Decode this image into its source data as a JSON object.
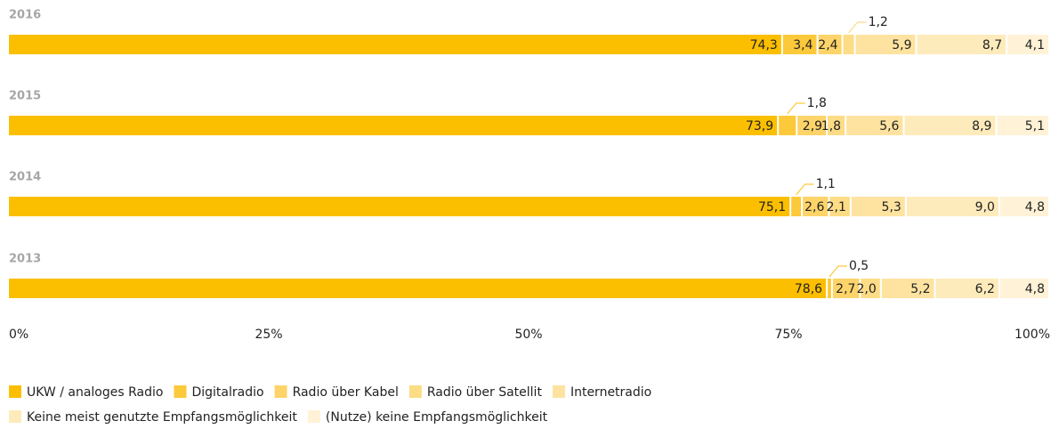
{
  "chart_data": {
    "type": "stacked_bar_horizontal",
    "categories": [
      "2016",
      "2015",
      "2014",
      "2013"
    ],
    "series": [
      {
        "name": "UKW / analoges Radio",
        "color": "#fbbf00",
        "values": [
          74.3,
          73.9,
          75.1,
          78.6
        ],
        "value_labels": [
          "74,3",
          "73,9",
          "75,1",
          "78,6"
        ]
      },
      {
        "name": "Digitalradio",
        "color": "#fcc93b",
        "values": [
          3.4,
          1.8,
          1.1,
          0.5
        ],
        "value_labels": [
          "3,4",
          "1,8",
          "1,1",
          "0,5"
        ]
      },
      {
        "name": "Radio über Kabel",
        "color": "#fdd46a",
        "values": [
          2.4,
          2.9,
          2.6,
          2.7
        ],
        "value_labels": [
          "2,4",
          "2,9",
          "2,6",
          "2,7"
        ]
      },
      {
        "name": "Radio über Satellit",
        "color": "#fddc86",
        "values": [
          1.2,
          1.8,
          2.1,
          2.0
        ],
        "value_labels": [
          "1,2",
          "1,8",
          "2,1",
          "2,0"
        ]
      },
      {
        "name": "Internetradio",
        "color": "#fee3a0",
        "values": [
          5.9,
          5.6,
          5.3,
          5.2
        ],
        "value_labels": [
          "5,9",
          "5,6",
          "5,3",
          "5,2"
        ]
      },
      {
        "name": "Keine meist genutzte Empfangsmöglichkeit",
        "color": "#feebbb",
        "values": [
          8.7,
          8.9,
          9.0,
          6.2
        ],
        "value_labels": [
          "8,7",
          "8,9",
          "9,0",
          "6,2"
        ]
      },
      {
        "name": "(Nutze) keine Empfangsmöglichkeit",
        "color": "#fff2d6",
        "values": [
          4.1,
          5.1,
          4.8,
          4.8
        ],
        "value_labels": [
          "4,1",
          "5,1",
          "4,8",
          "4,8"
        ]
      }
    ],
    "xlim": [
      0,
      100
    ],
    "xticks": [
      {
        "value": 0,
        "label": "0%"
      },
      {
        "value": 25,
        "label": "25%"
      },
      {
        "value": 50,
        "label": "50%"
      },
      {
        "value": 75,
        "label": "75%"
      },
      {
        "value": 100,
        "label": "100%"
      }
    ]
  }
}
